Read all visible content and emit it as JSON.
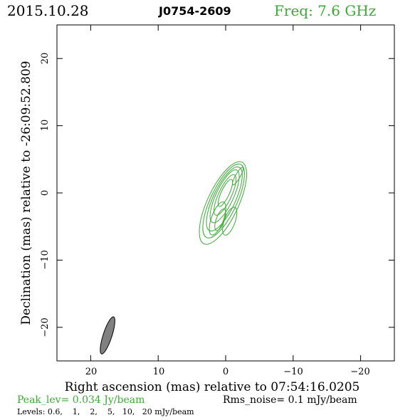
{
  "header": {
    "date": "2015.10.28",
    "source": "J0754-2609",
    "freq": "Freq: 7.6 GHz"
  },
  "footer": {
    "peak": "Peak_lev=  0.034 Jy/beam",
    "rms": "Rms_noise=   0.1 mJy/beam",
    "levels": "Levels: 0.6,    1,    2,    5,   10,   20 mJy/beam"
  },
  "colors": {
    "contour": "#3aaa35",
    "beam_fill": "#808080",
    "axis": "#000000"
  },
  "chart_data": {
    "type": "contour",
    "title": "J0754-2609",
    "xlabel": "Right ascension (mas) relative to 07:54:16.0205",
    "ylabel": "Declination (mas) relative to -26:09:52.809",
    "xlim": [
      25,
      -25
    ],
    "ylim": [
      -25,
      25
    ],
    "xticks": [
      20,
      10,
      0,
      -10,
      -20
    ],
    "xtick_labels": [
      "20",
      "10",
      "0",
      "−10",
      "−20"
    ],
    "yticks": [
      20,
      10,
      0,
      -10,
      -20
    ],
    "ytick_labels": [
      "20",
      "10",
      "0",
      "−10",
      "−20"
    ],
    "levels_mJy": [
      0.6,
      1,
      2,
      5,
      10,
      20
    ],
    "core": {
      "x": 0.0,
      "y": 0.0,
      "pa_deg": 155
    },
    "contours": [
      {
        "cx": 0.4,
        "cy": -1.5,
        "a": 6.7,
        "b": 2.3,
        "pa": 155
      },
      {
        "cx": 0.3,
        "cy": -1.2,
        "a": 6.0,
        "b": 1.95,
        "pa": 155
      },
      {
        "cx": 0.2,
        "cy": -0.9,
        "a": 5.2,
        "b": 1.65,
        "pa": 155
      },
      {
        "cx": 0.15,
        "cy": -0.5,
        "a": 4.3,
        "b": 1.3,
        "pa": 155
      },
      {
        "cx": 0.1,
        "cy": -0.3,
        "a": 3.3,
        "b": 0.95,
        "pa": 155
      },
      {
        "cx": 0.05,
        "cy": 0.0,
        "a": 2.2,
        "b": 0.6,
        "pa": 155
      }
    ],
    "features": [
      {
        "cx": 1.2,
        "cy": -3.8,
        "a": 2.6,
        "b": 0.9,
        "pa": 160
      },
      {
        "cx": -0.6,
        "cy": -4.2,
        "a": 2.2,
        "b": 0.8,
        "pa": 160
      },
      {
        "cx": 0.8,
        "cy": -4.0,
        "a": 1.7,
        "b": 0.6,
        "pa": 160
      },
      {
        "cx": -1.8,
        "cy": 2.5,
        "a": 1.5,
        "b": 0.35,
        "pa": 150
      }
    ],
    "beam": {
      "x": 17.5,
      "y": -21.2,
      "major_mas": 5.8,
      "minor_mas": 1.0,
      "pa_deg": 162
    }
  }
}
